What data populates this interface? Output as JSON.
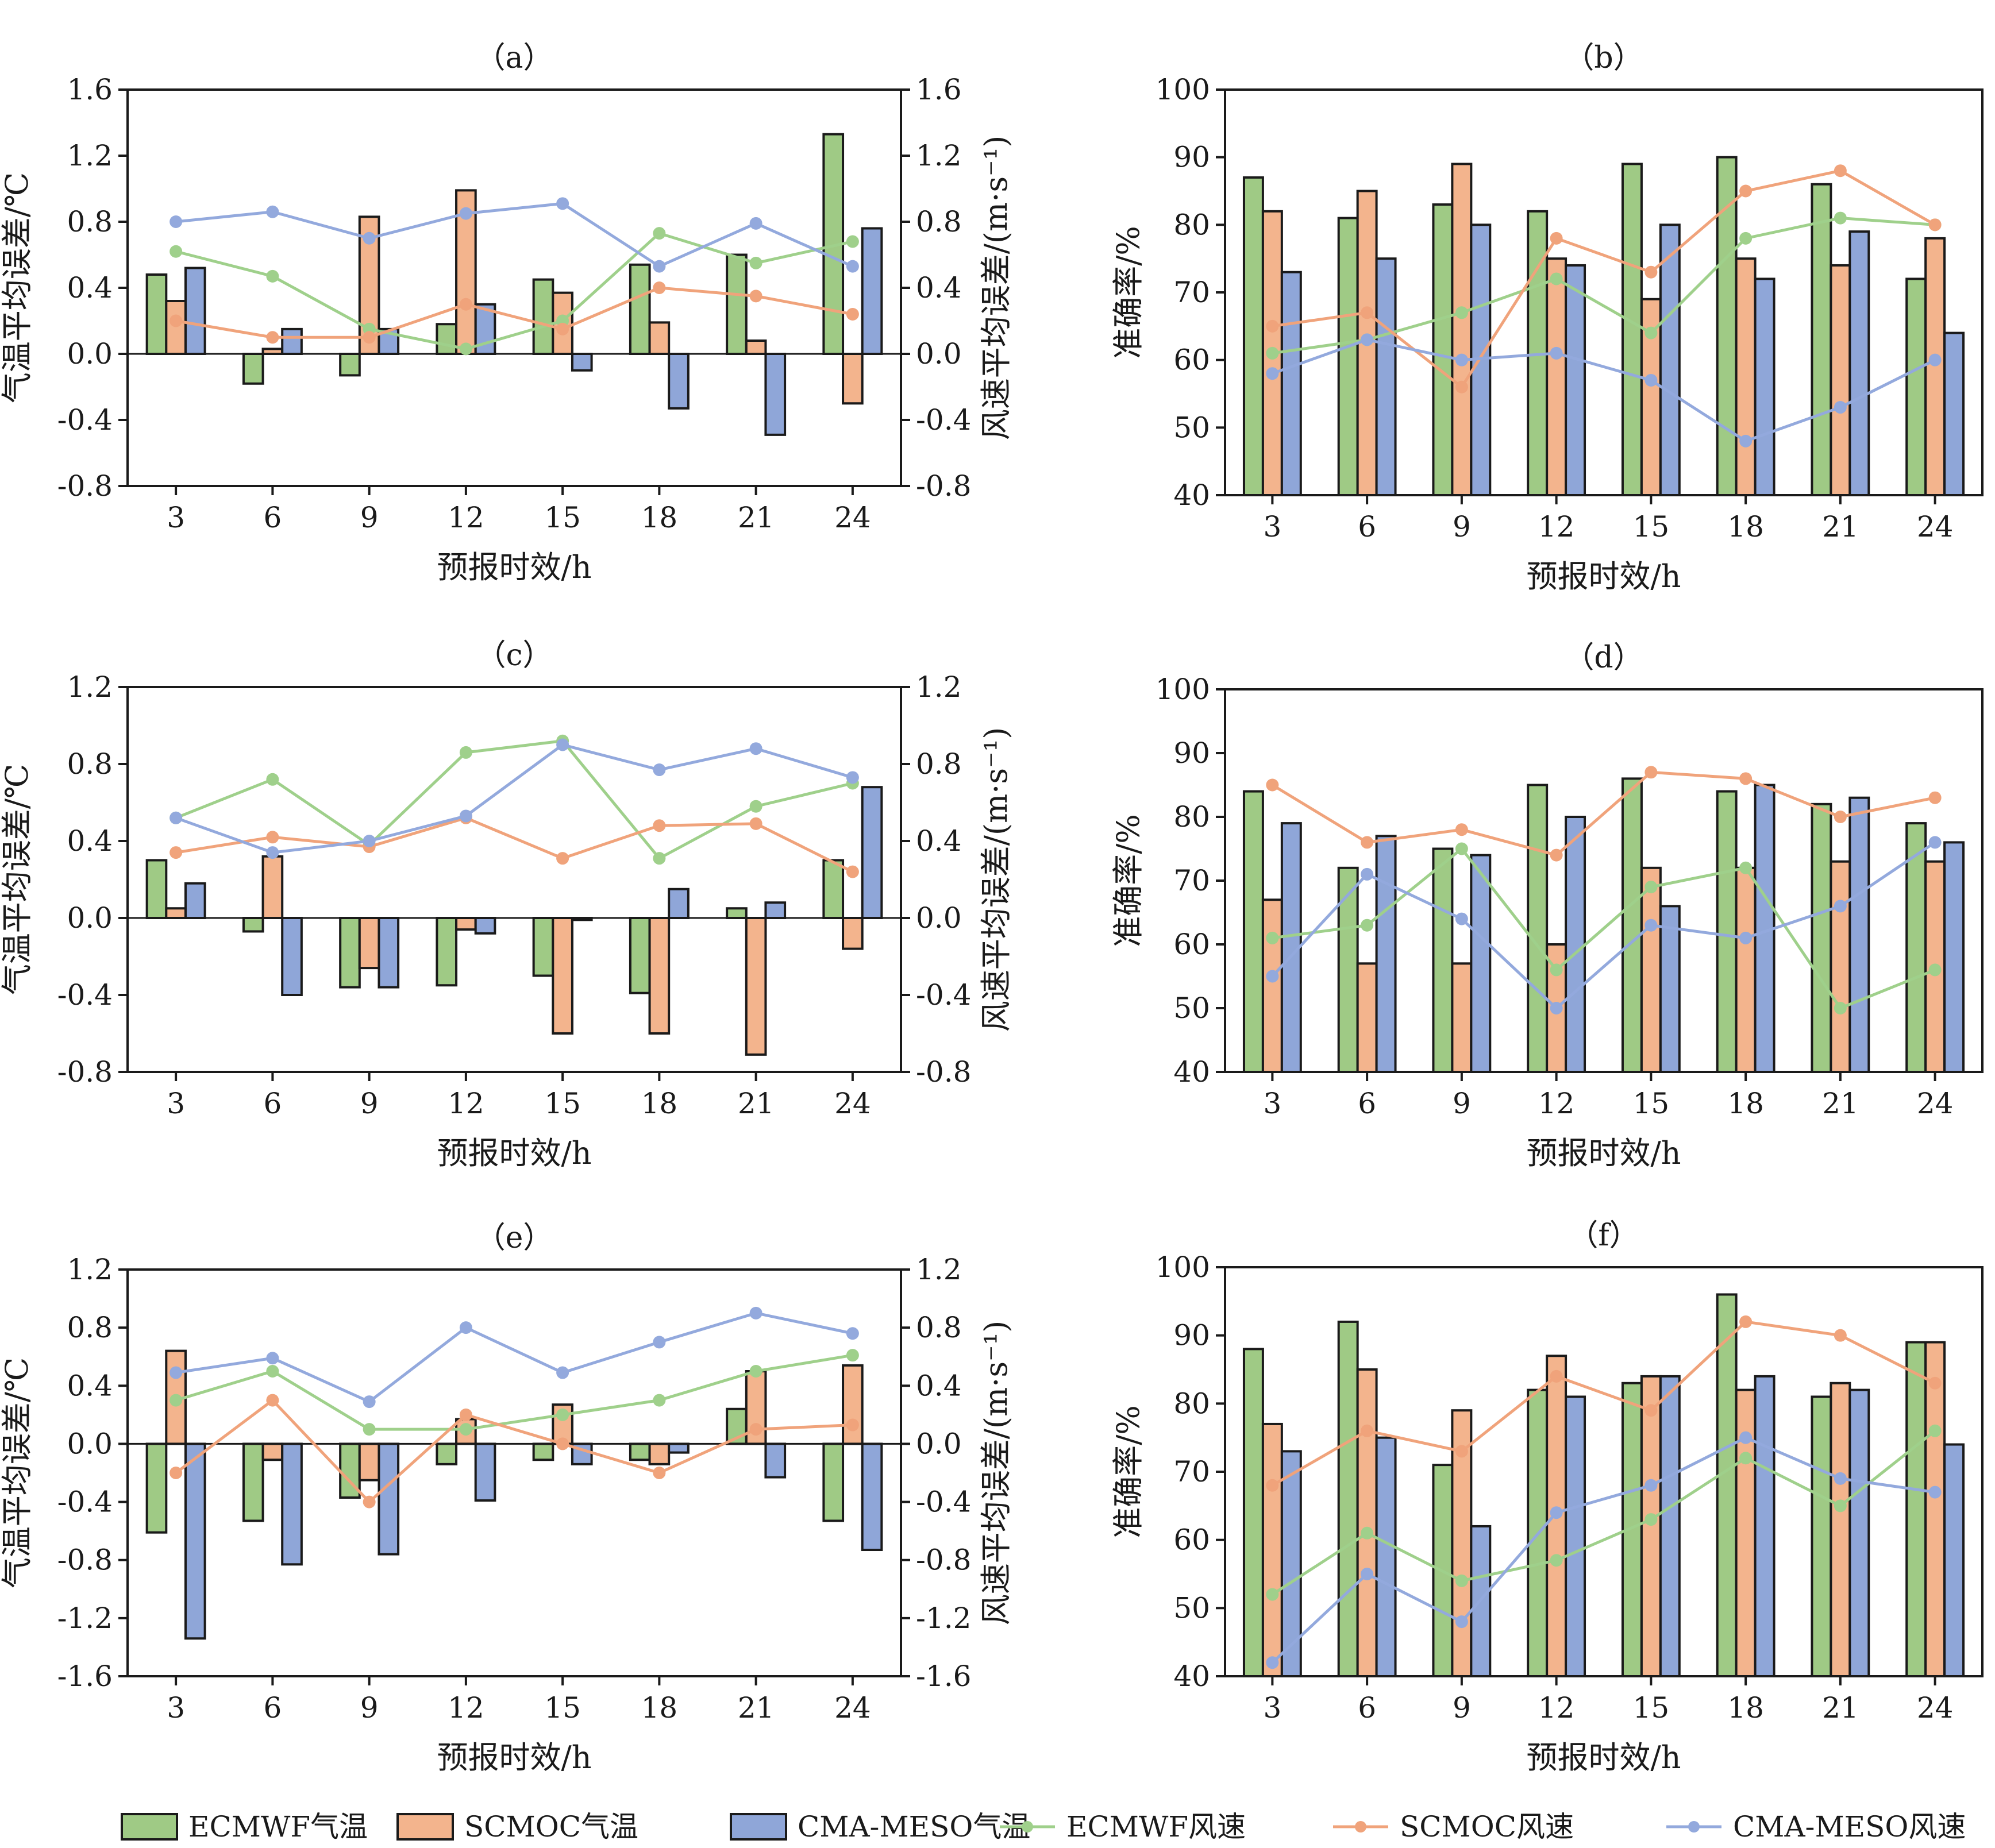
{
  "colors": {
    "ecmwf_bar": "#9fca85",
    "scmoc_bar": "#f3b48d",
    "cma_bar": "#8fa6d8",
    "ecmwf_line": "#9fd08b",
    "scmoc_line": "#f0a37b",
    "cma_line": "#93a9dd",
    "axis": "#1a1a1a"
  },
  "legend": [
    {
      "label": "ECMWF气温",
      "kind": "bar",
      "color_key": "ecmwf_bar"
    },
    {
      "label": "SCMOC气温",
      "kind": "bar",
      "color_key": "scmoc_bar"
    },
    {
      "label": "CMA-MESO气温",
      "kind": "bar",
      "color_key": "cma_bar"
    },
    {
      "label": "ECMWF风速",
      "kind": "line",
      "color_key": "ecmwf_line"
    },
    {
      "label": "SCMOC风速",
      "kind": "line",
      "color_key": "scmoc_line"
    },
    {
      "label": "CMA-MESO风速",
      "kind": "line",
      "color_key": "cma_line"
    }
  ],
  "chart_data": [
    {
      "label": "（a）",
      "type": "bar",
      "dual_axis": true,
      "xlabel": "预报时效/h",
      "ylabel": "气温平均误差/℃",
      "y2label": "风速平均误差/(m·s⁻¹)",
      "categories": [
        "3",
        "6",
        "9",
        "12",
        "15",
        "18",
        "21",
        "24"
      ],
      "ylim": [
        -0.8,
        1.6
      ],
      "yticks": [
        -0.8,
        -0.4,
        0.0,
        0.4,
        0.8,
        1.2,
        1.6
      ],
      "y2lim": [
        -0.8,
        1.6
      ],
      "y2ticks": [
        -0.8,
        -0.4,
        0.0,
        0.4,
        0.8,
        1.2,
        1.6
      ],
      "bars": [
        {
          "name": "ECMWF气温",
          "values": [
            0.48,
            -0.18,
            -0.13,
            0.18,
            0.45,
            0.54,
            0.6,
            1.33
          ]
        },
        {
          "name": "SCMOC气温",
          "values": [
            0.32,
            0.03,
            0.83,
            0.99,
            0.37,
            0.19,
            0.08,
            -0.3
          ]
        },
        {
          "name": "CMA-MESO气温",
          "values": [
            0.52,
            0.15,
            0.15,
            0.3,
            -0.1,
            -0.33,
            -0.49,
            0.76
          ]
        }
      ],
      "lines": [
        {
          "name": "ECMWF风速",
          "values": [
            0.62,
            0.47,
            0.15,
            0.03,
            0.2,
            0.73,
            0.55,
            0.68
          ]
        },
        {
          "name": "SCMOC风速",
          "values": [
            0.2,
            0.1,
            0.1,
            0.3,
            0.15,
            0.4,
            0.35,
            0.24
          ]
        },
        {
          "name": "CMA-MESO风速",
          "values": [
            0.8,
            0.86,
            0.7,
            0.85,
            0.91,
            0.53,
            0.79,
            0.53
          ]
        }
      ]
    },
    {
      "label": "（b）",
      "type": "bar",
      "dual_axis": false,
      "xlabel": "预报时效/h",
      "ylabel": "准确率/%",
      "categories": [
        "3",
        "6",
        "9",
        "12",
        "15",
        "18",
        "21",
        "24"
      ],
      "ylim": [
        40,
        100
      ],
      "yticks": [
        40,
        50,
        60,
        70,
        80,
        90,
        100
      ],
      "bars": [
        {
          "name": "ECMWF气温",
          "values": [
            87,
            81,
            83,
            82,
            89,
            90,
            86,
            72
          ]
        },
        {
          "name": "SCMOC气温",
          "values": [
            82,
            85,
            89,
            75,
            69,
            75,
            74,
            78
          ]
        },
        {
          "name": "CMA-MESO气温",
          "values": [
            73,
            75,
            80,
            74,
            80,
            72,
            79,
            64
          ]
        }
      ],
      "lines": [
        {
          "name": "ECMWF风速",
          "values": [
            61,
            63,
            67,
            72,
            64,
            78,
            81,
            80
          ]
        },
        {
          "name": "SCMOC风速",
          "values": [
            65,
            67,
            56,
            78,
            73,
            85,
            88,
            80
          ]
        },
        {
          "name": "CMA-MESO风速",
          "values": [
            58,
            63,
            60,
            61,
            57,
            48,
            53,
            60
          ]
        }
      ]
    },
    {
      "label": "（c）",
      "type": "bar",
      "dual_axis": true,
      "xlabel": "预报时效/h",
      "ylabel": "气温平均误差/℃",
      "y2label": "风速平均误差/(m·s⁻¹)",
      "categories": [
        "3",
        "6",
        "9",
        "12",
        "15",
        "18",
        "21",
        "24"
      ],
      "ylim": [
        -0.8,
        1.2
      ],
      "yticks": [
        -0.8,
        -0.4,
        0.0,
        0.4,
        0.8,
        1.2
      ],
      "y2lim": [
        -0.8,
        1.2
      ],
      "y2ticks": [
        -0.8,
        -0.4,
        0.0,
        0.4,
        0.8,
        1.2
      ],
      "bars": [
        {
          "name": "ECMWF气温",
          "values": [
            0.3,
            -0.07,
            -0.36,
            -0.35,
            -0.3,
            -0.39,
            0.05,
            0.3
          ]
        },
        {
          "name": "SCMOC气温",
          "values": [
            0.05,
            0.32,
            -0.26,
            -0.06,
            -0.6,
            -0.6,
            -0.71,
            -0.16
          ]
        },
        {
          "name": "CMA-MESO气温",
          "values": [
            0.18,
            -0.4,
            -0.36,
            -0.08,
            -0.01,
            0.15,
            0.08,
            0.68
          ]
        }
      ],
      "lines": [
        {
          "name": "ECMWF风速",
          "values": [
            0.52,
            0.72,
            0.38,
            0.86,
            0.92,
            0.31,
            0.58,
            0.7
          ]
        },
        {
          "name": "SCMOC风速",
          "values": [
            0.34,
            0.42,
            0.37,
            0.52,
            0.31,
            0.48,
            0.49,
            0.24
          ]
        },
        {
          "name": "CMA-MESO风速",
          "values": [
            0.52,
            0.34,
            0.4,
            0.53,
            0.9,
            0.77,
            0.88,
            0.73
          ]
        }
      ]
    },
    {
      "label": "（d）",
      "type": "bar",
      "dual_axis": false,
      "xlabel": "预报时效/h",
      "ylabel": "准确率/%",
      "categories": [
        "3",
        "6",
        "9",
        "12",
        "15",
        "18",
        "21",
        "24"
      ],
      "ylim": [
        40,
        100
      ],
      "yticks": [
        40,
        50,
        60,
        70,
        80,
        90,
        100
      ],
      "bars": [
        {
          "name": "ECMWF气温",
          "values": [
            84,
            72,
            75,
            85,
            86,
            84,
            82,
            79
          ]
        },
        {
          "name": "SCMOC气温",
          "values": [
            67,
            57,
            57,
            60,
            72,
            72,
            73,
            73
          ]
        },
        {
          "name": "CMA-MESO气温",
          "values": [
            79,
            77,
            74,
            80,
            66,
            85,
            83,
            76
          ]
        }
      ],
      "lines": [
        {
          "name": "ECMWF风速",
          "values": [
            61,
            63,
            75,
            56,
            69,
            72,
            50,
            56
          ]
        },
        {
          "name": "SCMOC风速",
          "values": [
            85,
            76,
            78,
            74,
            87,
            86,
            80,
            83
          ]
        },
        {
          "name": "CMA-MESO风速",
          "values": [
            55,
            71,
            64,
            50,
            63,
            61,
            66,
            76
          ]
        }
      ]
    },
    {
      "label": "（e）",
      "type": "bar",
      "dual_axis": true,
      "xlabel": "预报时效/h",
      "ylabel": "气温平均误差/℃",
      "y2label": "风速平均误差/(m·s⁻¹)",
      "categories": [
        "3",
        "6",
        "9",
        "12",
        "15",
        "18",
        "21",
        "24"
      ],
      "ylim": [
        -1.6,
        1.2
      ],
      "yticks": [
        -1.6,
        -1.2,
        -0.8,
        -0.4,
        0.0,
        0.4,
        0.8,
        1.2
      ],
      "y2lim": [
        -1.6,
        1.2
      ],
      "y2ticks": [
        -1.6,
        -1.2,
        -0.8,
        -0.4,
        0.0,
        0.4,
        0.8,
        1.2
      ],
      "bars": [
        {
          "name": "ECMWF气温",
          "values": [
            -0.61,
            -0.53,
            -0.37,
            -0.14,
            -0.11,
            -0.11,
            0.24,
            -0.53
          ]
        },
        {
          "name": "SCMOC气温",
          "values": [
            0.64,
            -0.11,
            -0.25,
            0.17,
            0.27,
            -0.14,
            0.5,
            0.54
          ]
        },
        {
          "name": "CMA-MESO气温",
          "values": [
            -1.34,
            -0.83,
            -0.76,
            -0.39,
            -0.14,
            -0.06,
            -0.23,
            -0.73
          ]
        }
      ],
      "lines": [
        {
          "name": "ECMWF风速",
          "values": [
            0.3,
            0.5,
            0.1,
            0.1,
            0.2,
            0.3,
            0.5,
            0.61
          ]
        },
        {
          "name": "SCMOC风速",
          "values": [
            -0.2,
            0.3,
            -0.4,
            0.2,
            0.0,
            -0.2,
            0.1,
            0.13
          ]
        },
        {
          "name": "CMA-MESO风速",
          "values": [
            0.49,
            0.59,
            0.29,
            0.8,
            0.49,
            0.7,
            0.9,
            0.76
          ]
        }
      ]
    },
    {
      "label": "（f）",
      "type": "bar",
      "dual_axis": false,
      "xlabel": "预报时效/h",
      "ylabel": "准确率/%",
      "categories": [
        "3",
        "6",
        "9",
        "12",
        "15",
        "18",
        "21",
        "24"
      ],
      "ylim": [
        40,
        100
      ],
      "yticks": [
        40,
        50,
        60,
        70,
        80,
        90,
        100
      ],
      "bars": [
        {
          "name": "ECMWF气温",
          "values": [
            88,
            92,
            71,
            82,
            83,
            96,
            81,
            89
          ]
        },
        {
          "name": "SCMOC气温",
          "values": [
            77,
            85,
            79,
            87,
            84,
            82,
            83,
            89
          ]
        },
        {
          "name": "CMA-MESO气温",
          "values": [
            73,
            75,
            62,
            81,
            84,
            84,
            82,
            74
          ]
        }
      ],
      "lines": [
        {
          "name": "ECMWF风速",
          "values": [
            52,
            61,
            54,
            57,
            63,
            72,
            65,
            76
          ]
        },
        {
          "name": "SCMOC风速",
          "values": [
            68,
            76,
            73,
            84,
            79,
            92,
            90,
            83
          ]
        },
        {
          "name": "CMA-MESO风速",
          "values": [
            42,
            55,
            48,
            64,
            68,
            75,
            69,
            67
          ]
        }
      ]
    }
  ]
}
